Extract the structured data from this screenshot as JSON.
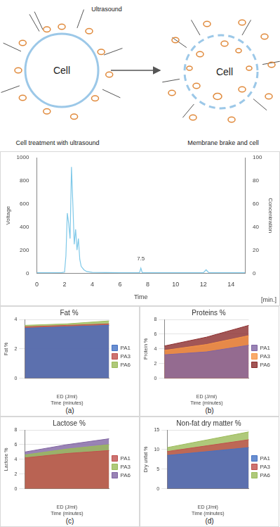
{
  "diagram": {
    "ultrasound_label": "Ultrasound",
    "left_cell": "Cell",
    "right_cell": "Cell",
    "left_caption": "Cell treatment with ultrasound",
    "right_caption": "Membrane brake and cell"
  },
  "chart_data": [
    {
      "type": "line",
      "xlabel": "Time",
      "x_unit": "[min.]",
      "ylabel": "Voltage",
      "y2label": "Concentration",
      "x": [
        0,
        1,
        1.8,
        2.0,
        2.1,
        2.2,
        2.3,
        2.4,
        2.5,
        2.6,
        2.7,
        2.8,
        2.9,
        3.0,
        3.1,
        3.2,
        3.4,
        3.6,
        4.0,
        5,
        6,
        7,
        7.4,
        7.5,
        7.6,
        8,
        9,
        10,
        11,
        12.0,
        12.2,
        12.4,
        13,
        14,
        15
      ],
      "values": [
        5,
        5,
        6,
        10,
        150,
        520,
        430,
        300,
        920,
        600,
        250,
        380,
        200,
        300,
        120,
        60,
        30,
        15,
        8,
        6,
        5,
        5,
        5,
        45,
        5,
        5,
        5,
        5,
        5,
        5,
        30,
        5,
        5,
        5,
        5
      ],
      "color": "#7ec8e8",
      "xlim": [
        0,
        15
      ],
      "xticks": [
        0,
        2,
        4,
        6,
        8,
        10,
        12,
        14
      ],
      "ylim": [
        0,
        1000
      ],
      "yticks": [
        0,
        200,
        400,
        600,
        800,
        1000
      ],
      "y2lim": [
        0,
        100
      ],
      "y2ticks": [
        0,
        20,
        40,
        60,
        80,
        100
      ],
      "annotations": [
        {
          "text": "7.5",
          "x": 7.5,
          "y": 110
        }
      ],
      "grid": false
    },
    {
      "type": "area",
      "title": "Fat %",
      "ylabel": "Fat %",
      "xlabel": "ED (J/ml)",
      "zlabel": "Time (minutes)",
      "caption": "(a)",
      "categories": [
        null,
        null,
        null
      ],
      "series": [
        {
          "name": "PA1",
          "color": "#4472c4",
          "values": [
            3.4,
            3.5,
            3.6
          ]
        },
        {
          "name": "PA3",
          "color": "#c0504d",
          "values": [
            3.5,
            3.6,
            3.7
          ]
        },
        {
          "name": "PA6",
          "color": "#9bbb59",
          "values": [
            3.6,
            3.7,
            3.9
          ]
        }
      ],
      "ylim": [
        0,
        4
      ],
      "yticks": [
        0,
        2,
        4
      ],
      "legend": "right"
    },
    {
      "type": "area",
      "title": "Proteins %",
      "ylabel": "Protein %",
      "xlabel": "ED (J/ml)",
      "zlabel": "Time (minutes)",
      "caption": "(b)",
      "categories": [
        null,
        null,
        null
      ],
      "series": [
        {
          "name": "PA1",
          "color": "#8064a2",
          "values": [
            3.2,
            3.6,
            4.5
          ]
        },
        {
          "name": "PA3",
          "color": "#f79646",
          "values": [
            3.8,
            4.6,
            5.8
          ]
        },
        {
          "name": "PA6",
          "color": "#8b2c2c",
          "values": [
            4.4,
            5.6,
            7.2
          ]
        }
      ],
      "ylim": [
        0,
        8
      ],
      "yticks": [
        0,
        2,
        4,
        6,
        8
      ],
      "legend": "right"
    },
    {
      "type": "area",
      "title": "Lactose %",
      "ylabel": "Lactose %",
      "xlabel": "ED (J/ml)",
      "zlabel": "Time (minutes)",
      "caption": "(c)",
      "categories": [
        null,
        null,
        null
      ],
      "series": [
        {
          "name": "PA1",
          "color": "#c0504d",
          "values": [
            4.2,
            4.8,
            5.2
          ]
        },
        {
          "name": "PA3",
          "color": "#9bbb59",
          "values": [
            4.6,
            5.4,
            6
          ]
        },
        {
          "name": "PA6",
          "color": "#8064a2",
          "values": [
            5,
            6,
            6.8
          ]
        }
      ],
      "ylim": [
        0,
        8
      ],
      "yticks": [
        0,
        2,
        4,
        6,
        8
      ],
      "legend": "right"
    },
    {
      "type": "area",
      "title": "Non-fat dry matter %",
      "ylabel": "Dry unfat %",
      "xlabel": "ED (J/ml)",
      "zlabel": "Time (minutes)",
      "caption": "(d)",
      "categories": [
        null,
        null,
        null
      ],
      "series": [
        {
          "name": "PA1",
          "color": "#4472c4",
          "values": [
            8.5,
            9.5,
            10.5
          ]
        },
        {
          "name": "PA3",
          "color": "#c0504d",
          "values": [
            9.5,
            11,
            12.5
          ]
        },
        {
          "name": "PA6",
          "color": "#9bbb59",
          "values": [
            10.5,
            12.5,
            14.5
          ]
        }
      ],
      "ylim": [
        0,
        15
      ],
      "yticks": [
        0,
        5,
        10,
        15
      ],
      "legend": "right"
    }
  ]
}
